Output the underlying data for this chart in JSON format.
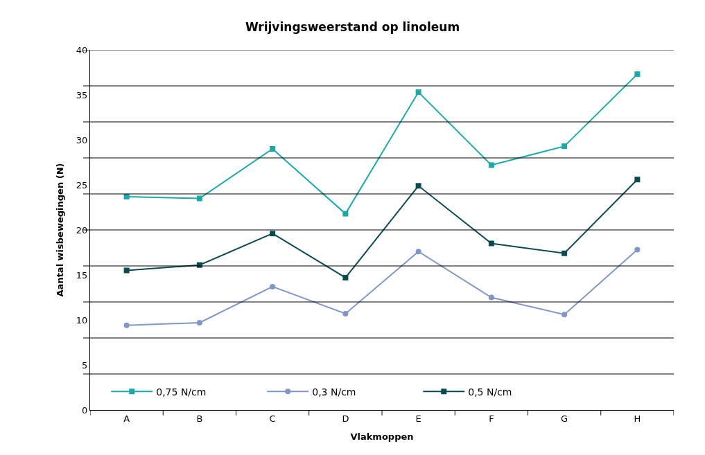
{
  "chart_data": {
    "type": "line",
    "title": "Wrijvingsweerstand op linoleum",
    "xlabel": "Vlakmoppen",
    "ylabel": "Aantal wisbewegingen (N)",
    "categories": [
      "A",
      "B",
      "C",
      "D",
      "E",
      "F",
      "G",
      "H"
    ],
    "series": [
      {
        "name": "0,75 N/cm",
        "color": "#1aa8a8",
        "marker": "square",
        "values": [
          23.7,
          23.5,
          29.0,
          21.8,
          35.3,
          27.2,
          29.3,
          37.3
        ]
      },
      {
        "name": "0,3 N/cm",
        "color": "#7f96c8",
        "marker": "circle",
        "values": [
          9.4,
          9.7,
          13.7,
          10.7,
          17.6,
          12.5,
          10.6,
          17.8
        ]
      },
      {
        "name": "0,5 N/cm",
        "color": "#0b4a50",
        "marker": "square",
        "values": [
          15.5,
          16.1,
          19.6,
          14.7,
          24.9,
          18.5,
          17.4,
          25.6
        ]
      }
    ],
    "ylim": [
      0,
      40
    ],
    "yticks": [
      0,
      5,
      10,
      15,
      20,
      25,
      30,
      35,
      40,
      {
        "value": 4,
        "label": null
      },
      {
        "value": 8,
        "label": null
      },
      {
        "value": 12,
        "label": null
      },
      {
        "value": 16,
        "label": null
      },
      {
        "value": 20,
        "label": null
      },
      {
        "value": 24,
        "label": null
      },
      {
        "value": 28,
        "label": null
      },
      {
        "value": 32,
        "label": null
      },
      {
        "value": 36,
        "label": null
      },
      {
        "value": 40,
        "label": null
      }
    ],
    "grid": "y",
    "legend": "bottom",
    "line_style": "solid"
  }
}
